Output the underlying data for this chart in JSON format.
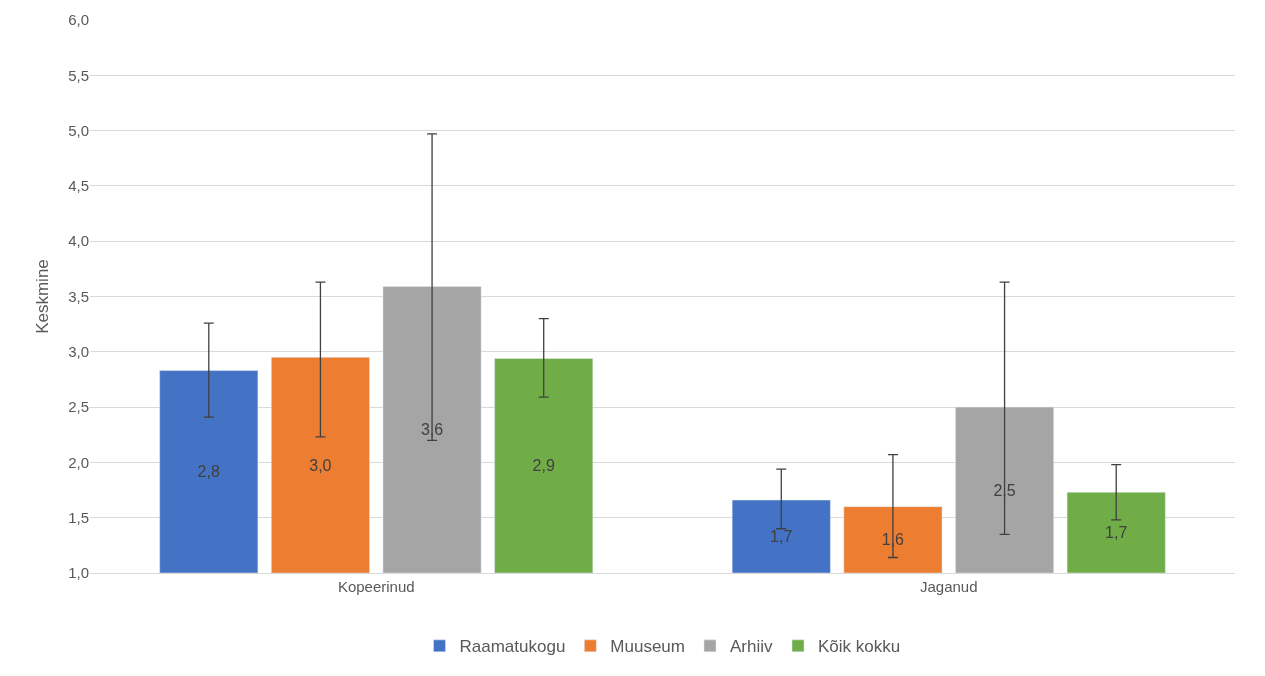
{
  "chart_data": {
    "type": "bar",
    "ylabel": "Keskmine",
    "categories": [
      "Kopeerinud",
      "Jaganud"
    ],
    "series": [
      {
        "name": "Raamatukogu",
        "color": "#4472c4",
        "values": [
          2.83,
          1.66
        ],
        "value_labels": [
          "2,8",
          "1,7"
        ],
        "errors": [
          [
            2.41,
            3.26
          ],
          [
            1.4,
            1.94
          ]
        ]
      },
      {
        "name": "Muuseum",
        "color": "#ed7d31",
        "values": [
          2.95,
          1.6
        ],
        "value_labels": [
          "3,0",
          "1,6"
        ],
        "errors": [
          [
            2.23,
            3.63
          ],
          [
            1.14,
            2.07
          ]
        ]
      },
      {
        "name": "Arhiiv",
        "color": "#a5a5a5",
        "values": [
          3.59,
          2.5
        ],
        "value_labels": [
          "3,6",
          "2,5"
        ],
        "errors": [
          [
            2.2,
            4.97
          ],
          [
            1.35,
            3.63
          ]
        ]
      },
      {
        "name": "Kõik kokku",
        "color": "#70ad47",
        "values": [
          2.94,
          1.73
        ],
        "value_labels": [
          "2,9",
          "1,7"
        ],
        "errors": [
          [
            2.59,
            3.3
          ],
          [
            1.48,
            1.98
          ]
        ]
      }
    ],
    "ylim": [
      1.0,
      6.0
    ],
    "yticks": [
      {
        "value": 1.0,
        "label": "1,0"
      },
      {
        "value": 1.5,
        "label": "1,5"
      },
      {
        "value": 2.0,
        "label": "2,0"
      },
      {
        "value": 2.5,
        "label": "2,5"
      },
      {
        "value": 3.0,
        "label": "3,0"
      },
      {
        "value": 3.5,
        "label": "3,5"
      },
      {
        "value": 4.0,
        "label": "4,0"
      },
      {
        "value": 4.5,
        "label": "4,5"
      },
      {
        "value": 5.0,
        "label": "5,0"
      },
      {
        "value": 5.5,
        "label": "5,5"
      },
      {
        "value": 6.0,
        "label": "6,0"
      }
    ],
    "grid": "y",
    "legend": "bottom"
  }
}
